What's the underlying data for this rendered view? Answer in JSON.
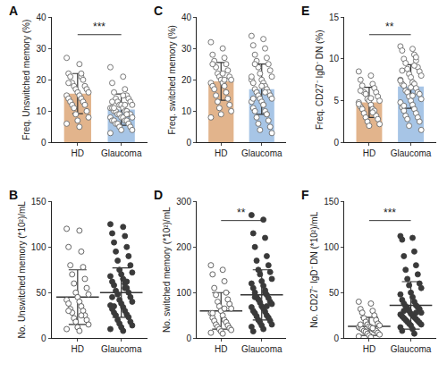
{
  "chart_data": [
    {
      "type": "bar",
      "label": "A",
      "ylabel": "Freq. Unswitched memory (%)",
      "categories": [
        "HD",
        "Glaucoma"
      ],
      "ylim": [
        0,
        40
      ],
      "yticks": [
        0,
        10,
        20,
        30,
        40
      ],
      "grid": false,
      "significance": "***",
      "series": [
        {
          "name": "HD",
          "color": "#e2b48c",
          "marker": "open",
          "mean": 15.6,
          "sd": 6.4,
          "points": [
            27,
            25,
            22,
            21,
            21,
            20,
            19,
            18,
            18,
            17,
            17,
            16,
            16,
            15,
            15,
            14,
            14,
            13,
            13,
            12,
            12,
            11,
            10,
            9,
            8,
            7,
            6,
            5,
            19,
            22
          ]
        },
        {
          "name": "Glaucoma",
          "color": "#a7c5e6",
          "marker": "open",
          "mean": 10.5,
          "sd": 5,
          "points": [
            24,
            21,
            19,
            17,
            16,
            15,
            14,
            14,
            13,
            13,
            12,
            12,
            12,
            11,
            11,
            11,
            10,
            10,
            10,
            10,
            9,
            9,
            9,
            9,
            8,
            8,
            8,
            8,
            7,
            7,
            7,
            7,
            6,
            6,
            6,
            5,
            5,
            4,
            4,
            3,
            15,
            13,
            12,
            11,
            9
          ]
        }
      ]
    },
    {
      "type": "scatter",
      "label": "B",
      "ylabel": "No. Unswitched memory (*10²)/mL",
      "categories": [
        "HD",
        "Glaucoma"
      ],
      "ylim": [
        0,
        150
      ],
      "yticks": [
        0,
        50,
        100,
        150
      ],
      "grid": false,
      "series": [
        {
          "name": "HD",
          "color": "#555555",
          "marker": "open",
          "mean": 45,
          "sd": 30,
          "points": [
            120,
            118,
            100,
            95,
            80,
            78,
            70,
            65,
            60,
            55,
            50,
            48,
            45,
            42,
            40,
            38,
            35,
            32,
            30,
            28,
            25,
            22,
            20,
            18,
            15,
            12,
            10,
            8,
            30,
            25
          ]
        },
        {
          "name": "Glaucoma",
          "color": "#3a3a3a",
          "marker": "filled",
          "mean": 50,
          "sd": 27,
          "points": [
            125,
            122,
            115,
            112,
            105,
            100,
            95,
            90,
            85,
            80,
            75,
            72,
            70,
            68,
            65,
            62,
            60,
            58,
            55,
            52,
            50,
            48,
            45,
            42,
            40,
            38,
            36,
            34,
            32,
            30,
            28,
            26,
            25,
            23,
            20,
            18,
            16,
            14,
            12,
            10,
            8,
            45,
            55,
            35,
            62
          ]
        }
      ]
    },
    {
      "type": "bar",
      "label": "C",
      "ylabel": "Freq. switched memory (%)",
      "categories": [
        "HD",
        "Glaucoma"
      ],
      "ylim": [
        0,
        40
      ],
      "yticks": [
        0,
        10,
        20,
        30,
        40
      ],
      "grid": false,
      "series": [
        {
          "name": "HD",
          "color": "#e2b48c",
          "marker": "open",
          "mean": 19.5,
          "sd": 6,
          "points": [
            32,
            30,
            28,
            27,
            26,
            25,
            24,
            23,
            22,
            21,
            21,
            20,
            20,
            19,
            19,
            18,
            18,
            17,
            16,
            15,
            14,
            13,
            12,
            11,
            10,
            9,
            8,
            22,
            25,
            20
          ]
        },
        {
          "name": "Glaucoma",
          "color": "#a7c5e6",
          "marker": "open",
          "mean": 17,
          "sd": 8,
          "points": [
            34,
            33,
            31,
            30,
            28,
            27,
            26,
            25,
            24,
            23,
            22,
            21,
            20,
            20,
            19,
            19,
            18,
            17,
            17,
            16,
            16,
            15,
            15,
            14,
            14,
            13,
            13,
            12,
            11,
            10,
            10,
            9,
            8,
            7,
            6,
            5,
            4,
            3,
            18,
            21,
            12,
            14,
            16,
            25,
            9
          ]
        }
      ]
    },
    {
      "type": "scatter",
      "label": "D",
      "ylabel": "No. switched memory (*10²)/mL",
      "categories": [
        "HD",
        "Glaucoma"
      ],
      "ylim": [
        0,
        300
      ],
      "yticks": [
        0,
        100,
        200,
        300
      ],
      "grid": false,
      "significance": "**",
      "series": [
        {
          "name": "HD",
          "color": "#555555",
          "marker": "open",
          "mean": 60,
          "sd": 40,
          "points": [
            160,
            150,
            140,
            125,
            110,
            100,
            95,
            85,
            80,
            75,
            70,
            65,
            60,
            55,
            50,
            45,
            40,
            38,
            35,
            30,
            28,
            25,
            22,
            20,
            18,
            15,
            12,
            10,
            55,
            65
          ]
        },
        {
          "name": "Glaucoma",
          "color": "#3a3a3a",
          "marker": "filled",
          "mean": 95,
          "sd": 55,
          "points": [
            270,
            260,
            230,
            220,
            200,
            180,
            170,
            160,
            150,
            145,
            140,
            130,
            125,
            120,
            115,
            110,
            105,
            100,
            95,
            90,
            88,
            85,
            80,
            78,
            75,
            70,
            68,
            65,
            60,
            58,
            55,
            50,
            48,
            45,
            40,
            38,
            35,
            30,
            28,
            25,
            20,
            15,
            100,
            90,
            70
          ]
        }
      ]
    },
    {
      "type": "bar",
      "label": "E",
      "ylabel": "Freq. CD27⁻ IgD⁻ DN (%)",
      "categories": [
        "HD",
        "Glaucoma"
      ],
      "ylim": [
        0,
        15
      ],
      "yticks": [
        0,
        5,
        10,
        15
      ],
      "grid": false,
      "significance": "**",
      "series": [
        {
          "name": "HD",
          "color": "#e2b48c",
          "marker": "open",
          "mean": 4.8,
          "sd": 1.8,
          "points": [
            8.5,
            8,
            7.5,
            7,
            6.8,
            6.5,
            6,
            6,
            5.8,
            5.5,
            5.2,
            5,
            5,
            4.8,
            4.5,
            4.3,
            4,
            4,
            3.8,
            3.5,
            3.2,
            3,
            2.8,
            2.5,
            2.2,
            2,
            4.6,
            5.3,
            6.2,
            3.6
          ]
        },
        {
          "name": "Glaucoma",
          "color": "#a7c5e6",
          "marker": "open",
          "mean": 6.7,
          "sd": 2.6,
          "points": [
            11.5,
            11.2,
            11,
            10.5,
            10,
            9.8,
            9.5,
            9,
            8.8,
            8.5,
            8.2,
            8,
            7.8,
            7.5,
            7.2,
            7,
            7,
            6.8,
            6.5,
            6.2,
            6,
            6,
            5.8,
            5.5,
            5.2,
            5,
            4.8,
            4.5,
            4.2,
            4,
            3.8,
            3.5,
            3.2,
            3,
            2.8,
            2.5,
            2,
            1.5,
            6.6,
            7.4,
            5.6,
            8.6,
            9.2,
            4.4,
            10.2
          ]
        }
      ]
    },
    {
      "type": "scatter",
      "label": "F",
      "ylabel": "No. CD27⁻ IgD⁻ DN (*10²)/mL",
      "categories": [
        "HD",
        "Glaucoma"
      ],
      "ylim": [
        0,
        150
      ],
      "yticks": [
        0,
        50,
        100,
        150
      ],
      "grid": false,
      "significance": "***",
      "series": [
        {
          "name": "HD",
          "color": "#555555",
          "marker": "open",
          "mean": 13,
          "sd": 10,
          "points": [
            40,
            38,
            32,
            30,
            28,
            25,
            22,
            20,
            18,
            16,
            15,
            14,
            13,
            12,
            12,
            11,
            10,
            10,
            9,
            8,
            8,
            7,
            6,
            5,
            4,
            3,
            2,
            1,
            15,
            11
          ]
        },
        {
          "name": "Glaucoma",
          "color": "#3a3a3a",
          "marker": "filled",
          "mean": 36,
          "sd": 26,
          "points": [
            112,
            110,
            108,
            95,
            90,
            80,
            75,
            70,
            65,
            60,
            58,
            55,
            50,
            48,
            45,
            42,
            40,
            38,
            36,
            35,
            34,
            33,
            32,
            30,
            28,
            27,
            26,
            25,
            24,
            23,
            22,
            21,
            20,
            19,
            18,
            17,
            16,
            15,
            14,
            12,
            10,
            8,
            5,
            30,
            28
          ]
        }
      ]
    }
  ]
}
